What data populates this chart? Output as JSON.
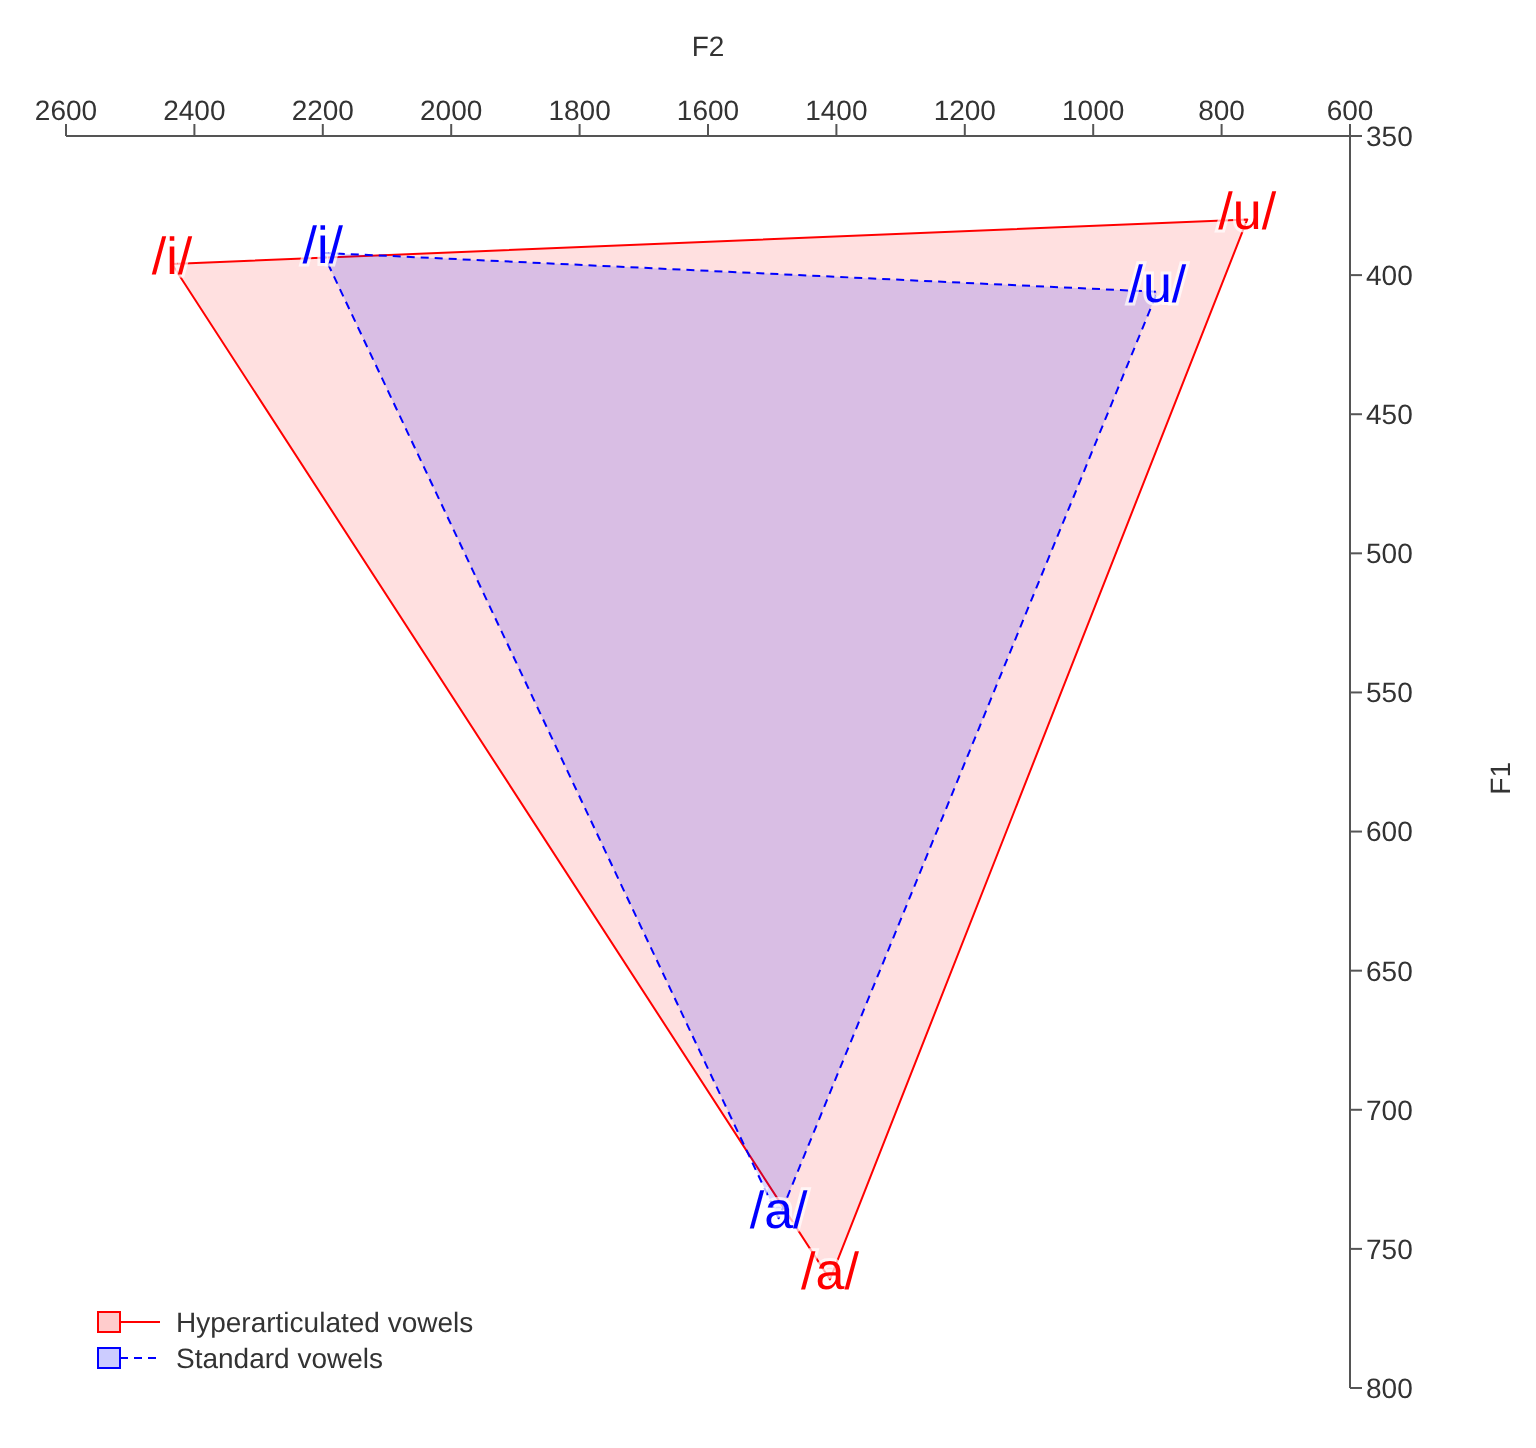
{
  "chart_data": {
    "type": "area",
    "xlabel": "F2",
    "ylabel": "F1",
    "xlim": [
      2600,
      600
    ],
    "ylim": [
      800,
      350
    ],
    "xticks": [
      2600,
      2400,
      2200,
      2000,
      1800,
      1600,
      1400,
      1200,
      1000,
      800,
      600
    ],
    "yticks": [
      350,
      400,
      450,
      500,
      550,
      600,
      650,
      700,
      750,
      800
    ],
    "grid": false,
    "legend": "bottom left",
    "marker": "none",
    "series": [
      {
        "name": "Hyperarticulated vowels",
        "color": "#ff0000",
        "line_style": "solid",
        "x": [
          2435,
          760,
          1410,
          2435
        ],
        "values": [
          396,
          380,
          761,
          396
        ],
        "value_labels": [
          "/i/",
          "/u/",
          "/a/",
          null
        ]
      },
      {
        "name": "Standard vowels",
        "color": "#0000ff",
        "line_style": "dashed",
        "x": [
          2200,
          900,
          1490,
          2200
        ],
        "values": [
          392,
          406,
          739,
          392
        ],
        "value_labels": [
          "/i/",
          "/u/",
          "/a/",
          null
        ]
      }
    ]
  }
}
